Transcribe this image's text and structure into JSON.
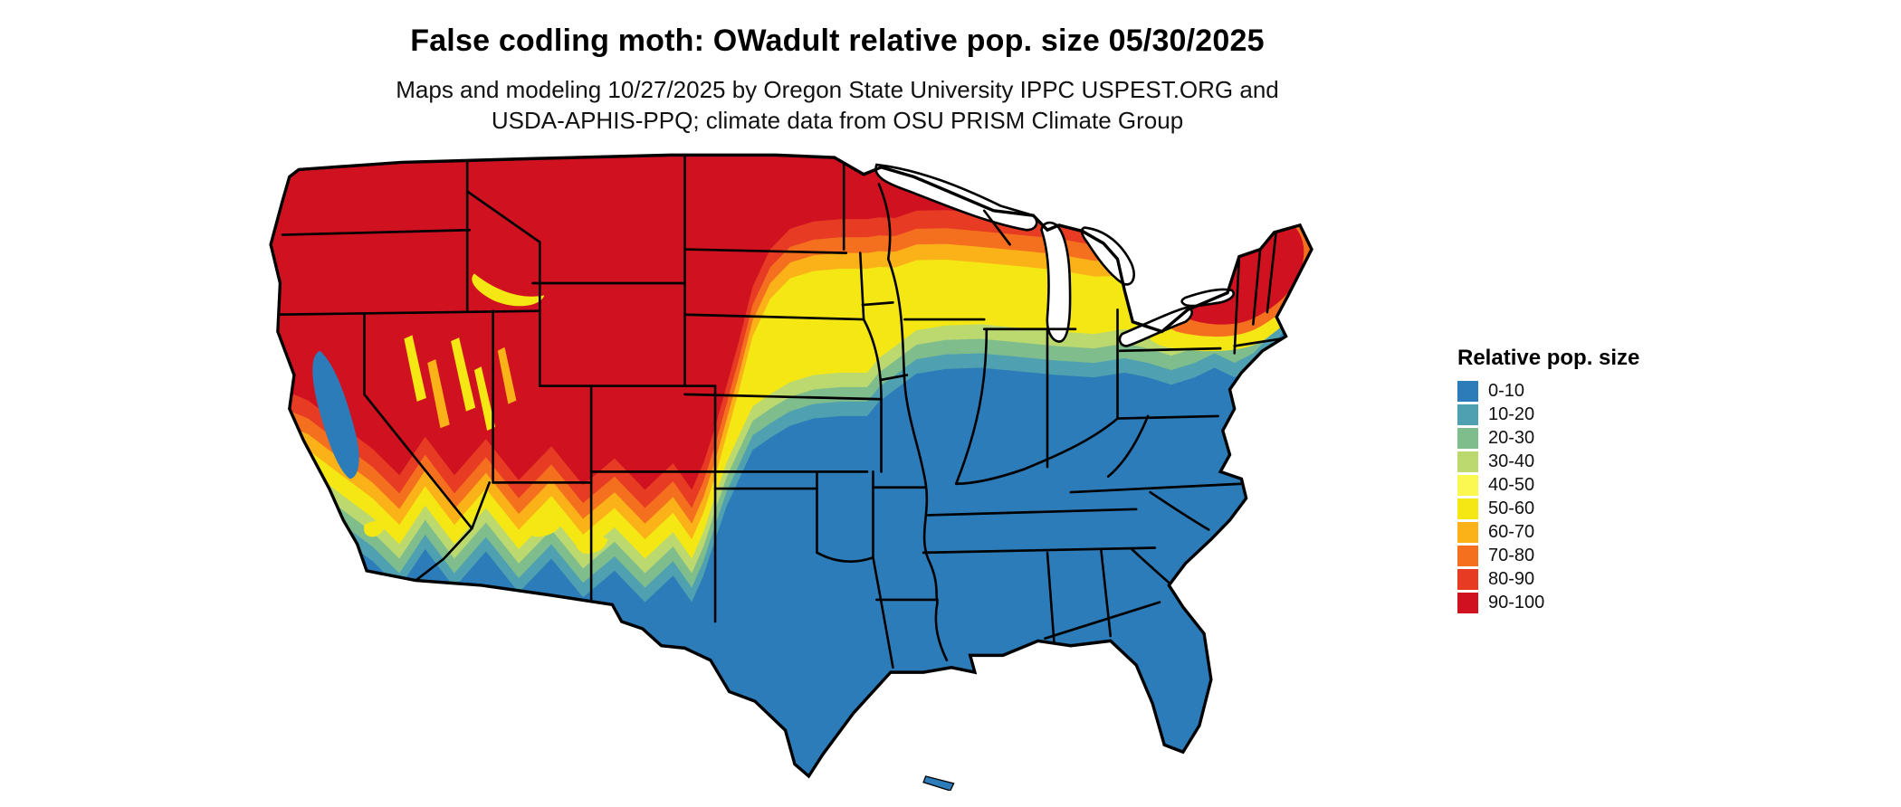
{
  "title": "False codling moth: OWadult relative pop. size 05/30/2025",
  "subtitle_line1": "Maps and modeling 10/27/2025 by Oregon State University IPPC USPEST.ORG and",
  "subtitle_line2": "USDA-APHIS-PPQ; climate data from OSU PRISM Climate Group",
  "legend": {
    "title": "Relative pop. size",
    "items": [
      {
        "label": "0-10",
        "color": "#2b7cb9"
      },
      {
        "label": "10-20",
        "color": "#4fa0b0"
      },
      {
        "label": "20-30",
        "color": "#7fbe8c"
      },
      {
        "label": "30-40",
        "color": "#bcd96f"
      },
      {
        "label": "40-50",
        "color": "#fbf851"
      },
      {
        "label": "50-60",
        "color": "#f4e714"
      },
      {
        "label": "60-70",
        "color": "#fbb118"
      },
      {
        "label": "70-80",
        "color": "#f4701f"
      },
      {
        "label": "80-90",
        "color": "#e73c23"
      },
      {
        "label": "90-100",
        "color": "#d01220"
      }
    ]
  },
  "map": {
    "outline_color": "#000000",
    "water_color": "#ffffff"
  }
}
